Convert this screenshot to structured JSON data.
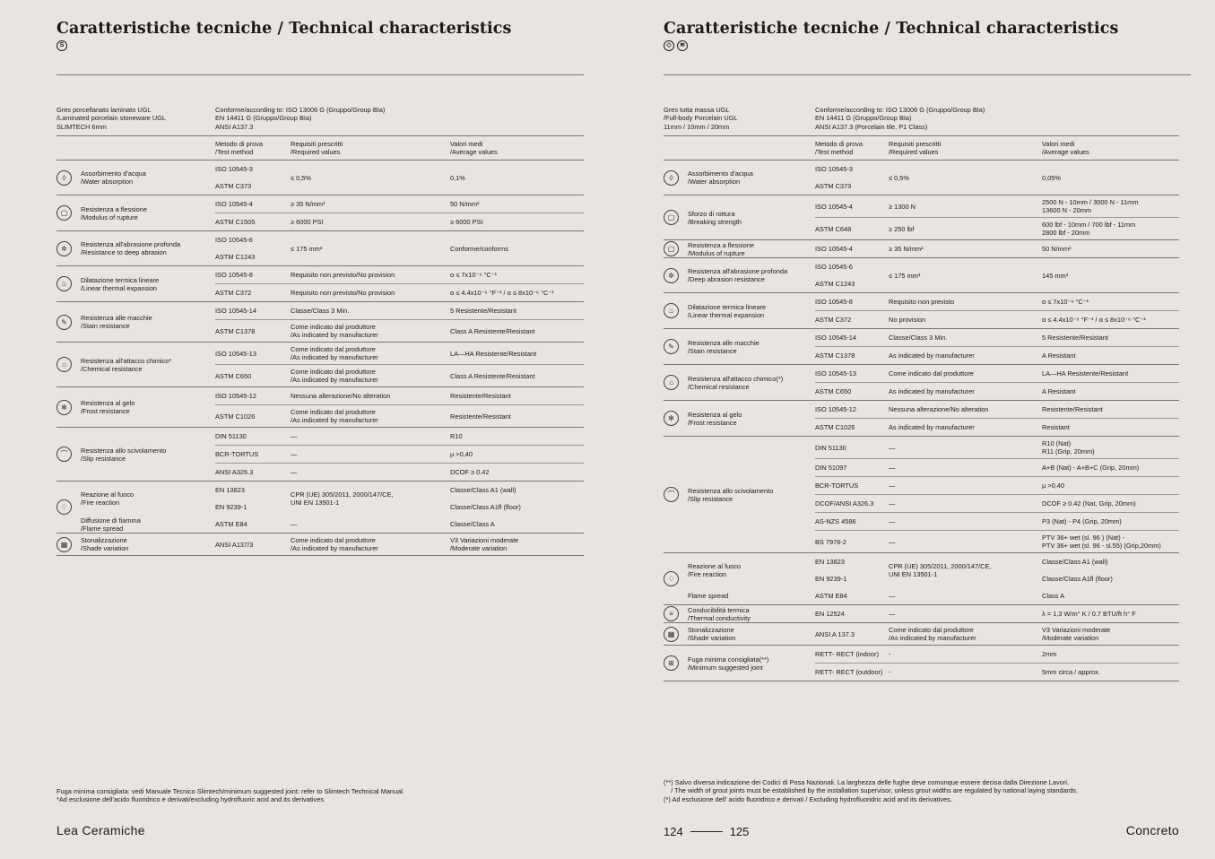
{
  "left": {
    "title": "Caratteristiche tecniche / Technical characteristics",
    "badges": [
      "S"
    ],
    "spec": {
      "product": [
        "Gres porcellanato laminato UGL",
        "/Laminated porcelain stoneware UGL",
        "SLIMTECH 6mm"
      ],
      "standards": [
        "Conforme/according to: ISO 13006 G (Gruppo/Group BIa)",
        "EN 14411 G (Gruppo/Group BIa)",
        "ANSI A137.3"
      ]
    },
    "headers": {
      "method": [
        "Metodo di prova",
        "/Test method"
      ],
      "required": [
        "Requisiti prescritti",
        "/Required values"
      ],
      "value": [
        "Valori medi",
        "/Average values"
      ]
    },
    "groups": [
      {
        "icon": "water-drop",
        "subs": [
          {
            "label": [
              "Assorbimento d'acqua",
              "/Water absorption"
            ],
            "methods": [
              "ISO 10545-3",
              "ASTM C373"
            ],
            "required": [
              "≤ 0,5%"
            ],
            "values": [
              "0,1%"
            ]
          }
        ]
      },
      {
        "icon": "flexion",
        "subs": [
          {
            "label": [
              "Resistenza a flessione",
              "/Modulus of rupture"
            ],
            "methods": [
              "ISO 10545-4",
              "ASTM C1505"
            ],
            "required": [
              "≥ 35 N/mm²",
              "≥ 6000 PSI"
            ],
            "values": [
              "50 N/mm²",
              "≥ 6000 PSI"
            ]
          }
        ]
      },
      {
        "icon": "abrasion",
        "subs": [
          {
            "label": [
              "Resistenza all'abrasione profonda",
              "/Resistance to deep abrasion"
            ],
            "methods": [
              "ISO 10545-6",
              "ASTM C1243"
            ],
            "required": [
              "≤ 175 mm³"
            ],
            "values": [
              "Conforme/conforms"
            ]
          }
        ]
      },
      {
        "icon": "thermal",
        "subs": [
          {
            "label": [
              "Dilatazione termica lineare",
              "/Linear thermal expansion"
            ],
            "methods": [
              "ISO 10545-8",
              "ASTM C372"
            ],
            "required": [
              "Requisito non previsto/No provision",
              "Requisito non previsto/No provision"
            ],
            "values": [
              "α ≤ 7x10⁻⁶ °C⁻¹",
              "α ≤ 4.4x10⁻⁶ °F⁻¹ / α ≤ 8x10⁻⁶ °C⁻¹"
            ]
          }
        ]
      },
      {
        "icon": "stain",
        "subs": [
          {
            "label": [
              "Resistenza alle macchie",
              "/Stain resistance"
            ],
            "methods": [
              "ISO 10545-14",
              "ASTM C1378"
            ],
            "required": [
              "Classe/Class 3 Min.",
              "Come indicato dal produttore\n/As indicated by manufacturer"
            ],
            "values": [
              "5 Resistente/Resistant",
              "Class A Resistente/Resistant"
            ]
          }
        ]
      },
      {
        "icon": "chemical",
        "subs": [
          {
            "label": [
              "Resistenza all'attacco chimico*",
              "/Chemical resistance"
            ],
            "methods": [
              "ISO 10545-13",
              "ASTM C650"
            ],
            "required": [
              "Come indicato dal produttore\n/As indicated by manufacturer",
              "Come indicato dal produttore\n/As indicated by manufacturer"
            ],
            "values": [
              "LA—HA Resistente/Resistant",
              "Class A Resistente/Resistant"
            ]
          }
        ]
      },
      {
        "icon": "frost",
        "subs": [
          {
            "label": [
              "Resistenza al gelo",
              "/Frost resistance"
            ],
            "methods": [
              "ISO 10545-12",
              "ASTM C1026"
            ],
            "required": [
              "Nessuna alterazione/No alteration",
              "Come indicato dal produttore\n/As indicated by manufacturer"
            ],
            "values": [
              "Resistente/Resistant",
              "Resistente/Resistant"
            ]
          }
        ]
      },
      {
        "icon": "slip",
        "subs": [
          {
            "label": [
              "Resistenza allo scivolamento",
              "/Slip resistance"
            ],
            "methods": [
              "DIN 51130",
              "BCR-TORTUS",
              "ANSI A326.3"
            ],
            "required": [
              "—",
              "—",
              "—"
            ],
            "values": [
              "R10",
              "μ >0,40",
              "DCOF ≥ 0.42"
            ]
          }
        ]
      },
      {
        "icon": "fire",
        "subs": [
          {
            "label": [
              "Reazione al fuoco",
              "/Fire reaction"
            ],
            "methods": [
              "EN 13823",
              "EN 9239-1"
            ],
            "required": [
              "CPR (UE) 305/2011, 2000/147/CE,\nUNI EN 13501-1"
            ],
            "values": [
              "Classe/Class A1 (wall)",
              "Classe/Class A1fl (floor)"
            ]
          },
          {
            "label": [
              "Diffusione di fiamma",
              "/Flame spread"
            ],
            "methods": [
              "ASTM E84"
            ],
            "required": [
              "—"
            ],
            "values": [
              "Classe/Class A"
            ]
          }
        ]
      },
      {
        "icon": "shade",
        "subs": [
          {
            "label": [
              "Stonalizzazione",
              "/Shade variation"
            ],
            "methods": [
              "ANSI A137/3"
            ],
            "required": [
              "Come indicato dal produttore\n/As indicated by manufacturer"
            ],
            "values": [
              "V3 Variazioni moderate\n/Moderate variation"
            ]
          }
        ]
      }
    ],
    "footnotes": [
      "Fuga minima consigliata: vedi Manuale Tecnico Slimtech/minimum suggested joint: refer to Slimtech Technical Manual.",
      "*Ad esclusione dell'acido fluoridrico e derivati/excluding hydrofluoric acid and its derivatives"
    ],
    "brand": "Lea  Ceramiche"
  },
  "right": {
    "title": "Caratteristiche tecniche / Technical characteristics",
    "badges": [
      "◇",
      "≋"
    ],
    "spec": {
      "product": [
        "Gres tutta massa UGL",
        "/Full-body Porcelain UGL",
        "11mm / 10mm / 20mm"
      ],
      "standards": [
        "Conforme/according to: ISO 13006 G (Gruppo/Group BIa)",
        "EN 14411 G (Gruppo/Group BIa)",
        "ANSI A137.3 (Porcelain tile, P1 Class)"
      ]
    },
    "headers": {
      "method": [
        "Metodo di prova",
        "/Test method"
      ],
      "required": [
        "Requisiti prescritti",
        "/Required values"
      ],
      "value": [
        "Valori medi",
        "/Average values"
      ]
    },
    "groups": [
      {
        "icon": "water-drop",
        "subs": [
          {
            "label": [
              "Assorbimento d'acqua",
              "/Water absorption"
            ],
            "methods": [
              "ISO 10545-3",
              "ASTM C373"
            ],
            "required": [
              "≤ 0,5%"
            ],
            "values": [
              "0,05%"
            ]
          }
        ]
      },
      {
        "icon": "breaking",
        "subs": [
          {
            "label": [
              "Sforzo di rottura",
              "/Breaking strength"
            ],
            "methods": [
              "ISO 10545-4",
              "ASTM C648"
            ],
            "required": [
              "≥ 1300 N",
              "≥ 250 lbf"
            ],
            "values": [
              "2500 N - 10mm / 3000 N - 11mm\n13600 N - 20mm",
              "600 lbf - 10mm / 700 lbf - 11mm\n2800 lbf - 20mm"
            ]
          }
        ]
      },
      {
        "icon": "flexion",
        "subs": [
          {
            "label": [
              "Resistenza a flessione",
              "/Modulus of rupture"
            ],
            "methods": [
              "ISO 10545-4"
            ],
            "required": [
              "≥ 35 N/mm²"
            ],
            "values": [
              "50 N/mm²"
            ]
          }
        ]
      },
      {
        "icon": "abrasion",
        "subs": [
          {
            "label": [
              "Resistenza all'abrasione profonda",
              "/Deep abrasion resistance"
            ],
            "methods": [
              "ISO 10545-6",
              "ASTM C1243"
            ],
            "required": [
              "≤ 175 mm³"
            ],
            "values": [
              "145 mm³"
            ]
          }
        ]
      },
      {
        "icon": "thermal",
        "subs": [
          {
            "label": [
              "Dilatazione termica lineare",
              "/Linear thermal expansion"
            ],
            "methods": [
              "ISO 10545-8",
              "ASTM C372"
            ],
            "required": [
              "Requisito non previsto",
              "No provision"
            ],
            "values": [
              "α ≤ 7x10⁻⁶ °C⁻¹",
              "α ≤ 4.4x10⁻⁶ °F⁻¹ / α ≤ 8x10⁻⁶ °C⁻¹"
            ]
          }
        ]
      },
      {
        "icon": "stain",
        "subs": [
          {
            "label": [
              "Resistenza alle macchie",
              "/Stain resistance"
            ],
            "methods": [
              "ISO 10545-14",
              "ASTM C1378"
            ],
            "required": [
              "Classe/Class 3 Min.",
              "As indicated by manufacturer"
            ],
            "values": [
              "5 Resistente/Resistant",
              "A Resistant"
            ]
          }
        ]
      },
      {
        "icon": "chemical",
        "subs": [
          {
            "label": [
              "Resistenza all'attacco chimico(*)",
              "/Chemical resistance"
            ],
            "methods": [
              "ISO 10545-13",
              "ASTM C650"
            ],
            "required": [
              "Come indicato dal produttore",
              "As indicated by manufacturer"
            ],
            "values": [
              "LA—HA Resistente/Resistant",
              "A Resistant"
            ]
          }
        ]
      },
      {
        "icon": "frost",
        "subs": [
          {
            "label": [
              "Resistenza al gelo",
              "/Frost resistance"
            ],
            "methods": [
              "ISO 10545-12",
              "ASTM C1026"
            ],
            "required": [
              "Nessuna alterazione/No alteration",
              "As indicated by manufacturer"
            ],
            "values": [
              "Resistente/Resistant",
              "Resistant"
            ]
          }
        ]
      },
      {
        "icon": "slip",
        "subs": [
          {
            "label": [
              "Resistenza allo scivolamento",
              "/Slip resistance"
            ],
            "methods": [
              "DIN 51130",
              "DIN 51097",
              "BCR-TORTUS",
              "DCOF/ANSI A326.3",
              "AS-NZS 4586",
              "BS 7976-2"
            ],
            "required": [
              "—",
              "—",
              "—",
              "—",
              "—",
              "—"
            ],
            "values": [
              "R10 (Nat)\nR11 (Grip, 20mm)",
              "A+B (Nat) - A+B+C (Grip, 20mm)",
              "μ >0,40",
              "DCOF ≥ 0.42 (Nat, Grip, 20mm)",
              "P3 (Nat) - P4 (Grip, 20mm)",
              "PTV 36+ wet (sl. 96 ) (Nat) -\nPTV 36+ wet (sl. 96 - sl.55) (Grip,20mm)"
            ]
          }
        ]
      },
      {
        "icon": "fire",
        "subs": [
          {
            "label": [
              "Reazione al fuoco",
              "/Fire reaction"
            ],
            "methods": [
              "EN 13823",
              "EN 9239-1"
            ],
            "required": [
              "CPR (UE) 305/2011, 2000/147/CE,\nUNI EN 13501-1"
            ],
            "values": [
              "Classe/Class A1 (wall)",
              "Classe/Class A1fl (floor)"
            ]
          },
          {
            "label": [
              "Flame spread"
            ],
            "methods": [
              "ASTM E84"
            ],
            "required": [
              "—"
            ],
            "values": [
              "Class A"
            ]
          }
        ]
      },
      {
        "icon": "thermal-conductivity",
        "subs": [
          {
            "label": [
              "Conducibilità termica",
              "/Thermal conductivity"
            ],
            "methods": [
              "EN 12524"
            ],
            "required": [
              "—"
            ],
            "values": [
              "λ = 1,3 W/m° K / 0.7 BTU/ft h° F"
            ]
          }
        ]
      },
      {
        "icon": "shade",
        "subs": [
          {
            "label": [
              "Stonalizzazione",
              "/Shade variation"
            ],
            "methods": [
              "ANSI A 137.3"
            ],
            "required": [
              "Come indicato dal produttore\n/As indicated by manufacturer"
            ],
            "values": [
              "V3 Variazioni moderate\n/Moderate variation"
            ]
          }
        ]
      },
      {
        "icon": "joint",
        "subs": [
          {
            "label": [
              "Fuga minima consigliata(**)",
              "/Minimum suggested joint"
            ],
            "methods": [
              "RETT- RECT (indoor)",
              "RETT- RECT (outdoor)"
            ],
            "required": [
              "-",
              "-"
            ],
            "values": [
              "2mm",
              "5mm circa / approx."
            ]
          }
        ]
      }
    ],
    "footnotes": [
      "(**) Salvo diversa indicazione dei Codici di Posa Nazionali. La larghezza delle fughe deve comunque essere decisa dalla Direzione Lavori.",
      "    / The width of grout joints must be established by the installation supervisor, unless grout widths are regulated by national laying standards.",
      "(*) Ad esclusione dell' acido fluoridrico e derivati / Excluding hydrofluoridric acid and its derivatives."
    ],
    "pages": {
      "left": "124",
      "right": "125"
    },
    "brand": "Concreto"
  }
}
